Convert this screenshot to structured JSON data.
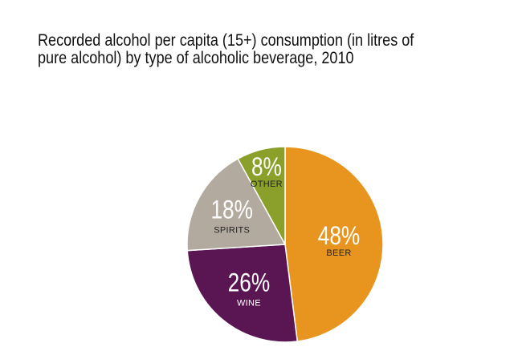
{
  "chart_data": {
    "type": "pie",
    "title": "Recorded alcohol per capita (15+) consumption (in litres of pure alcohol) by type of alcoholic beverage, 2010",
    "slices": [
      {
        "category": "BEER",
        "value": 48,
        "label": "48%",
        "color": "#E8951F",
        "category_color": "#222222"
      },
      {
        "category": "WINE",
        "value": 26,
        "label": "26%",
        "color": "#5A1652",
        "category_color": "#ffffff"
      },
      {
        "category": "SPIRITS",
        "value": 18,
        "label": "18%",
        "color": "#B2A99F",
        "category_color": "#222222"
      },
      {
        "category": "OTHER",
        "value": 8,
        "label": "8%",
        "color": "#8BA02A",
        "category_color": "#222222"
      }
    ],
    "start": "12 o'clock",
    "direction": "clockwise",
    "slice_border_color": "#ffffff"
  }
}
